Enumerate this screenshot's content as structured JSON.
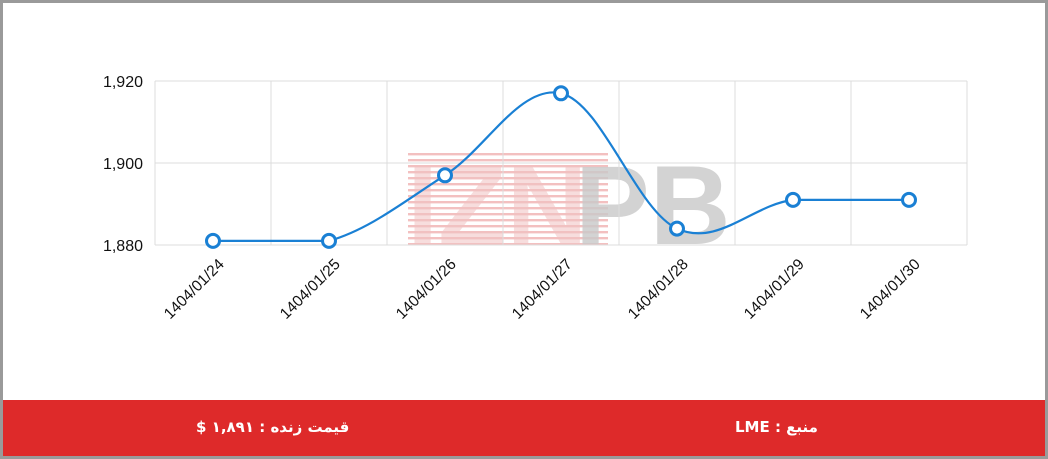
{
  "chart_data": {
    "type": "line",
    "categories": [
      "1404/01/24",
      "1404/01/25",
      "1404/01/26",
      "1404/01/27",
      "1404/01/28",
      "1404/01/29",
      "1404/01/30"
    ],
    "values": [
      1881,
      1881,
      1897,
      1917,
      1884,
      1891,
      1891
    ],
    "ylim": [
      1880,
      1920
    ],
    "yticks": [
      "1,880",
      "1,900",
      "1,920"
    ],
    "ytick_values": [
      1880,
      1900,
      1920
    ],
    "grid": true,
    "line_color": "#1a80d4",
    "watermark": "IZNPB"
  },
  "footer": {
    "source_text": "منبع : LME",
    "live_price_text": "قیمت زنده : ۱,۸۹۱ $",
    "background_color": "#de2a2a"
  }
}
